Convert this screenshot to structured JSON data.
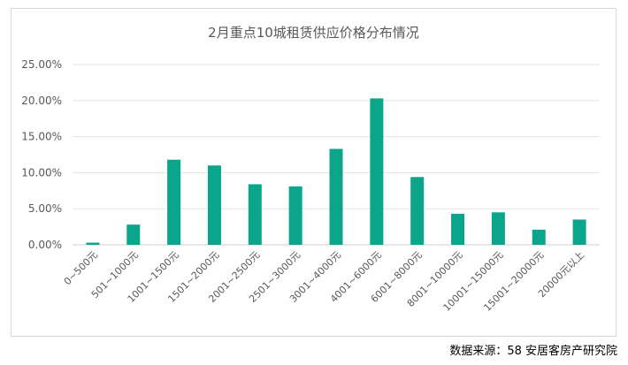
{
  "chart_data": {
    "type": "bar",
    "title": "2月重点10城租赁供应价格分布情况",
    "categories": [
      "0~500元",
      "501~1000元",
      "1001~1500元",
      "1501~2000元",
      "2001~2500元",
      "2501~3000元",
      "3001~4000元",
      "4001~6000元",
      "6001~8000元",
      "8001~10000元",
      "10001~15000元",
      "15001~20000元",
      "20000元以上"
    ],
    "values": [
      0.3,
      2.8,
      11.8,
      11.0,
      8.4,
      8.1,
      13.3,
      20.3,
      9.4,
      4.3,
      4.5,
      2.1,
      3.5
    ],
    "value_unit": "%",
    "ylim": [
      0,
      25
    ],
    "yticks": [
      "0.00%",
      "5.00%",
      "10.00%",
      "15.00%",
      "20.00%",
      "25.00%"
    ],
    "bar_color": "#0aa58a",
    "grid": true,
    "legend": "none"
  },
  "source": "数据来源：58 安居客房产研究院"
}
